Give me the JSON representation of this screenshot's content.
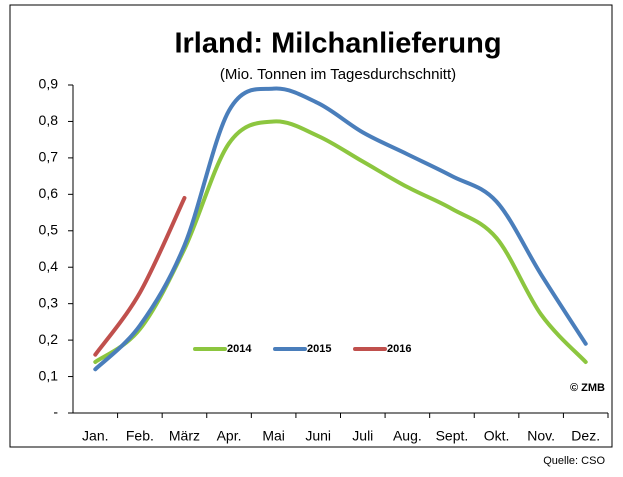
{
  "chart_data": {
    "type": "line",
    "title": "Irland: Milchanlieferung",
    "subtitle": "(Mio. Tonnen im Tagesdurchschnitt)",
    "categories": [
      "Jan.",
      "Feb.",
      "März",
      "Apr.",
      "Mai",
      "Juni",
      "Juli",
      "Aug.",
      "Sept.",
      "Okt.",
      "Nov.",
      "Dez."
    ],
    "series": [
      {
        "name": "2014",
        "color": "#8cc63f",
        "values": [
          0.14,
          0.23,
          0.45,
          0.74,
          0.8,
          0.76,
          0.69,
          0.62,
          0.56,
          0.48,
          0.27,
          0.14
        ]
      },
      {
        "name": "2015",
        "color": "#4a7ebb",
        "values": [
          0.12,
          0.24,
          0.46,
          0.83,
          0.89,
          0.85,
          0.77,
          0.71,
          0.65,
          0.58,
          0.38,
          0.19
        ]
      },
      {
        "name": "2016",
        "color": "#c0504d",
        "values": [
          0.16,
          0.33,
          0.59,
          null,
          null,
          null,
          null,
          null,
          null,
          null,
          null,
          null
        ]
      }
    ],
    "ylim": [
      0,
      0.9
    ],
    "yticks": [
      {
        "value": 0,
        "label": "-"
      },
      {
        "value": 0.1,
        "label": "0,1"
      },
      {
        "value": 0.2,
        "label": "0,2"
      },
      {
        "value": 0.3,
        "label": "0,3"
      },
      {
        "value": 0.4,
        "label": "0,4"
      },
      {
        "value": 0.5,
        "label": "0,5"
      },
      {
        "value": 0.6,
        "label": "0,6"
      },
      {
        "value": 0.7,
        "label": "0,7"
      },
      {
        "value": 0.8,
        "label": "0,8"
      },
      {
        "value": 0.9,
        "label": "0,9"
      }
    ],
    "copyright": "© ZMB",
    "source": "Quelle: CSO"
  }
}
